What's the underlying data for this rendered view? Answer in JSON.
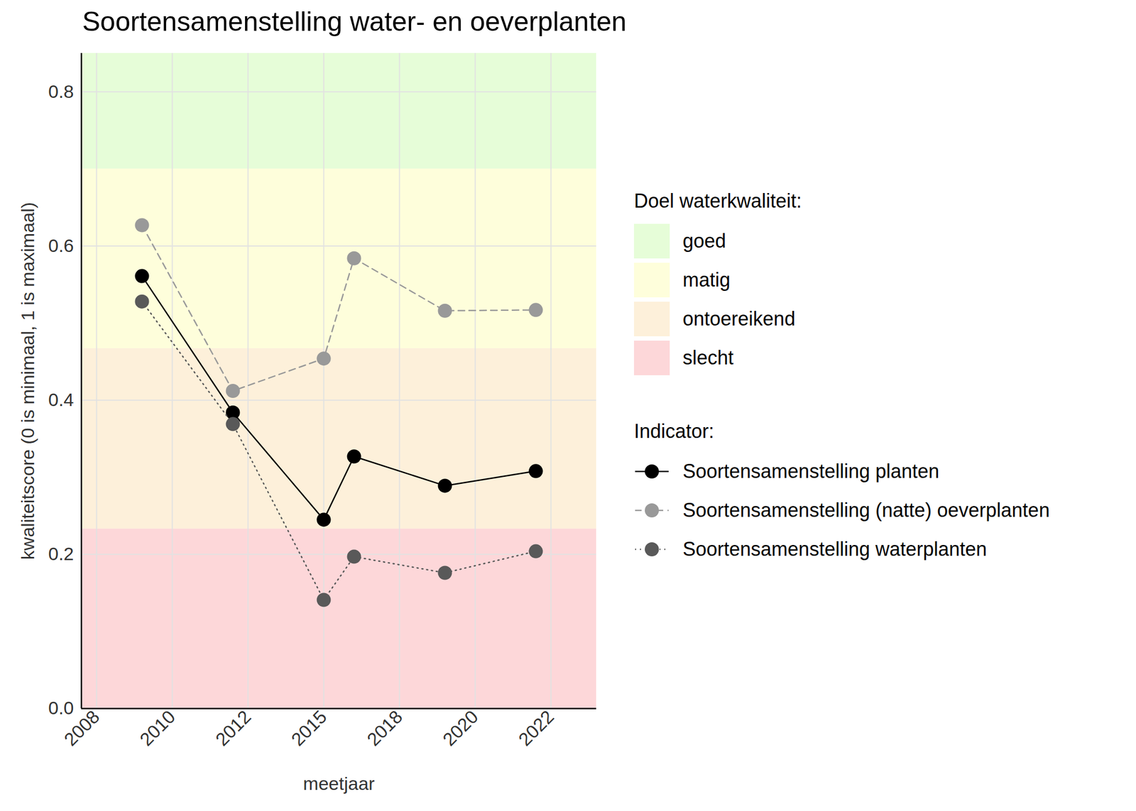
{
  "chart_data": {
    "type": "line",
    "title": "Soortensamenstelling water- en oeverplanten",
    "x_label": "meetjaar",
    "y_label": "kwaliteitscore (0 is minimaal, 1 is maximaal)",
    "x": [
      2009,
      2012,
      2015,
      2016,
      2019,
      2022
    ],
    "series": [
      {
        "name": "Soortensamenstelling planten",
        "color": "#000000",
        "line_style": "solid",
        "marker": "circle",
        "values": [
          0.561,
          0.384,
          0.245,
          0.327,
          0.289,
          0.308
        ]
      },
      {
        "name": "Soortensamenstelling (natte) oeverplanten",
        "color": "#999999",
        "line_style": "dashed",
        "marker": "circle",
        "values": [
          0.627,
          0.412,
          0.454,
          0.584,
          0.516,
          0.517
        ]
      },
      {
        "name": "Soortensamenstelling waterplanten",
        "color": "#595959",
        "line_style": "dotted",
        "marker": "circle",
        "values": [
          0.528,
          0.369,
          0.141,
          0.197,
          0.176,
          0.204
        ]
      }
    ],
    "xlim": [
      2007,
      2024
    ],
    "xticks": [
      {
        "value": 2007.5,
        "label": "2008"
      },
      2010,
      {
        "value": 2012.5,
        "label": "2012"
      },
      2015,
      {
        "value": 2017.5,
        "label": "2018"
      },
      2020,
      {
        "value": 2022.5,
        "label": "2022"
      }
    ],
    "ylim": [
      0,
      0.85
    ],
    "yticks": [
      {
        "value": 0,
        "label": "0.0"
      },
      0.2,
      0.4,
      0.6,
      0.8
    ],
    "grid": true,
    "legend": "right",
    "legend_title": "Indicator:",
    "bands_title": "Doel waterkwaliteit:",
    "bands": [
      {
        "name": "goed",
        "color": "#e6fdd8",
        "from": 0.7,
        "to": 1
      },
      {
        "name": "matig",
        "color": "#fefedb",
        "from": 0.467,
        "to": 0.7
      },
      {
        "name": "ontoereikend",
        "color": "#fdf0da",
        "from": 0.233,
        "to": 0.467
      },
      {
        "name": "slecht",
        "color": "#fdd7d9",
        "from": 0,
        "to": 0.233
      }
    ]
  }
}
